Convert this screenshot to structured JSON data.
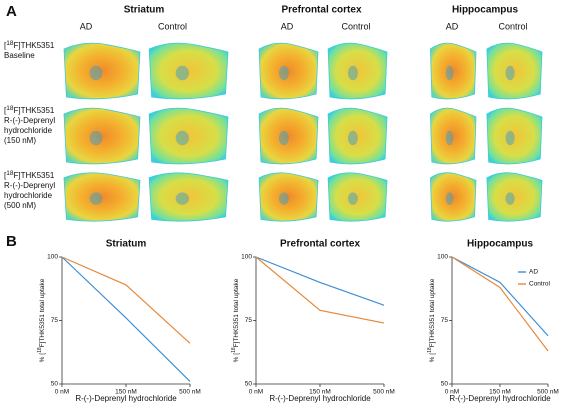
{
  "panel_a": {
    "label": "A",
    "regions": [
      {
        "title": "Striatum",
        "columns": [
          "AD",
          "Control"
        ]
      },
      {
        "title": "Prefrontal cortex",
        "columns": [
          "AD",
          "Control"
        ]
      },
      {
        "title": "Hippocampus",
        "columns": [
          "AD",
          "Control"
        ]
      }
    ],
    "rows": [
      {
        "tracer": [
          "[",
          "18",
          "F]THK5351"
        ],
        "lines": [
          "Baseline"
        ]
      },
      {
        "tracer": [
          "[",
          "18",
          "F]THK5351"
        ],
        "lines": [
          "R-(-)-Deprenyl",
          "hydrochloride",
          "(150 nM)"
        ]
      },
      {
        "tracer": [
          "[",
          "18",
          "F]THK5351"
        ],
        "lines": [
          "R-(-)-Deprenyl",
          "hydrochloride",
          "(500 nM)"
        ]
      }
    ]
  },
  "panel_b": {
    "label": "B"
  },
  "chart_data": [
    {
      "type": "line",
      "title": "Striatum",
      "categories": [
        "0 nM",
        "150 nM",
        "500 nM"
      ],
      "x_label": "R-(-)-Deprenyl hydrochloride",
      "y_label": [
        "% [",
        "18",
        "F]THK5351 total uptake"
      ],
      "ylim": [
        50,
        100
      ],
      "yticks": [
        50,
        75,
        100
      ],
      "series": [
        {
          "name": "AD",
          "color": "#3f8fd4",
          "values": [
            100,
            76,
            51
          ]
        },
        {
          "name": "Control",
          "color": "#e58a3c",
          "values": [
            100,
            89,
            66
          ]
        }
      ]
    },
    {
      "type": "line",
      "title": "Prefrontal cortex",
      "categories": [
        "0 nM",
        "150 nM",
        "500 nM"
      ],
      "x_label": "R-(-)-Deprenyl hydrochloride",
      "y_label": [
        "% [",
        "18",
        "F]THK5351 total uptake"
      ],
      "ylim": [
        50,
        100
      ],
      "yticks": [
        50,
        75,
        100
      ],
      "series": [
        {
          "name": "AD",
          "color": "#3f8fd4",
          "values": [
            100,
            90,
            81
          ]
        },
        {
          "name": "Control",
          "color": "#e58a3c",
          "values": [
            100,
            79,
            74
          ]
        }
      ]
    },
    {
      "type": "line",
      "title": "Hippocampus",
      "categories": [
        "0 nM",
        "150 nM",
        "500 nM"
      ],
      "x_label": "R-(-)-Deprenyl hydrochloride",
      "y_label": [
        "% [",
        "18",
        "F]THK5351 total uptake"
      ],
      "ylim": [
        50,
        100
      ],
      "yticks": [
        50,
        75,
        100
      ],
      "legend": "upper right",
      "series": [
        {
          "name": "AD",
          "color": "#3f8fd4",
          "values": [
            100,
            90,
            69
          ]
        },
        {
          "name": "Control",
          "color": "#e58a3c",
          "values": [
            100,
            88,
            63
          ]
        }
      ]
    }
  ]
}
